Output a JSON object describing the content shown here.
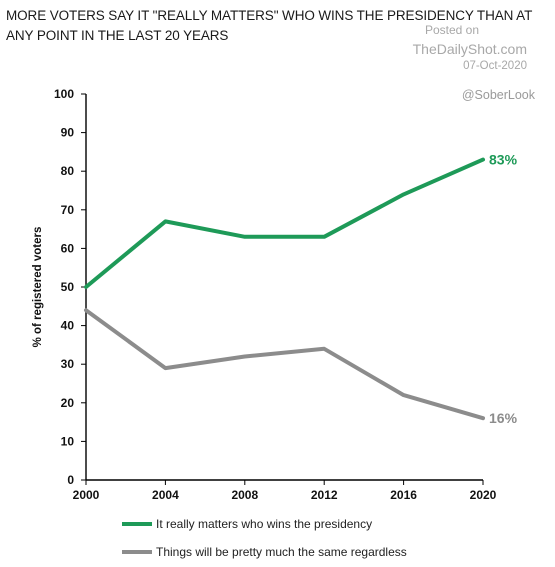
{
  "title": "MORE VOTERS SAY IT \"REALLY MATTERS\" WHO WINS THE PRESIDENCY THAN AT ANY POINT IN THE LAST 20 YEARS",
  "watermark": {
    "posted_on": "Posted on",
    "site": "TheDailyShot.com",
    "date": "07-Oct-2020",
    "handle": "@SoberLook"
  },
  "colors": {
    "series1": "#1e9a58",
    "series2": "#8c8c8c",
    "axis": "#000000"
  },
  "chart_data": {
    "type": "line",
    "title": "MORE VOTERS SAY IT \"REALLY MATTERS\" WHO WINS THE PRESIDENCY THAN AT ANY POINT IN THE LAST 20 YEARS",
    "xlabel": "",
    "ylabel": "% of registered voters",
    "x": [
      2000,
      2004,
      2008,
      2012,
      2016,
      2020
    ],
    "x_ticks": [
      "2000",
      "2004",
      "2008",
      "2012",
      "2016",
      "2020"
    ],
    "ylim": [
      0,
      100
    ],
    "y_ticks": [
      "0",
      "10",
      "20",
      "30",
      "40",
      "50",
      "60",
      "70",
      "80",
      "90",
      "100"
    ],
    "grid": false,
    "legend": "bottom",
    "series": [
      {
        "name": "It really matters who wins the presidency",
        "values": [
          50,
          67,
          63,
          63,
          74,
          83
        ],
        "end_label": "83%"
      },
      {
        "name": "Things will be pretty much the same regardless",
        "values": [
          44,
          29,
          32,
          34,
          22,
          16
        ],
        "end_label": "16%"
      }
    ]
  }
}
